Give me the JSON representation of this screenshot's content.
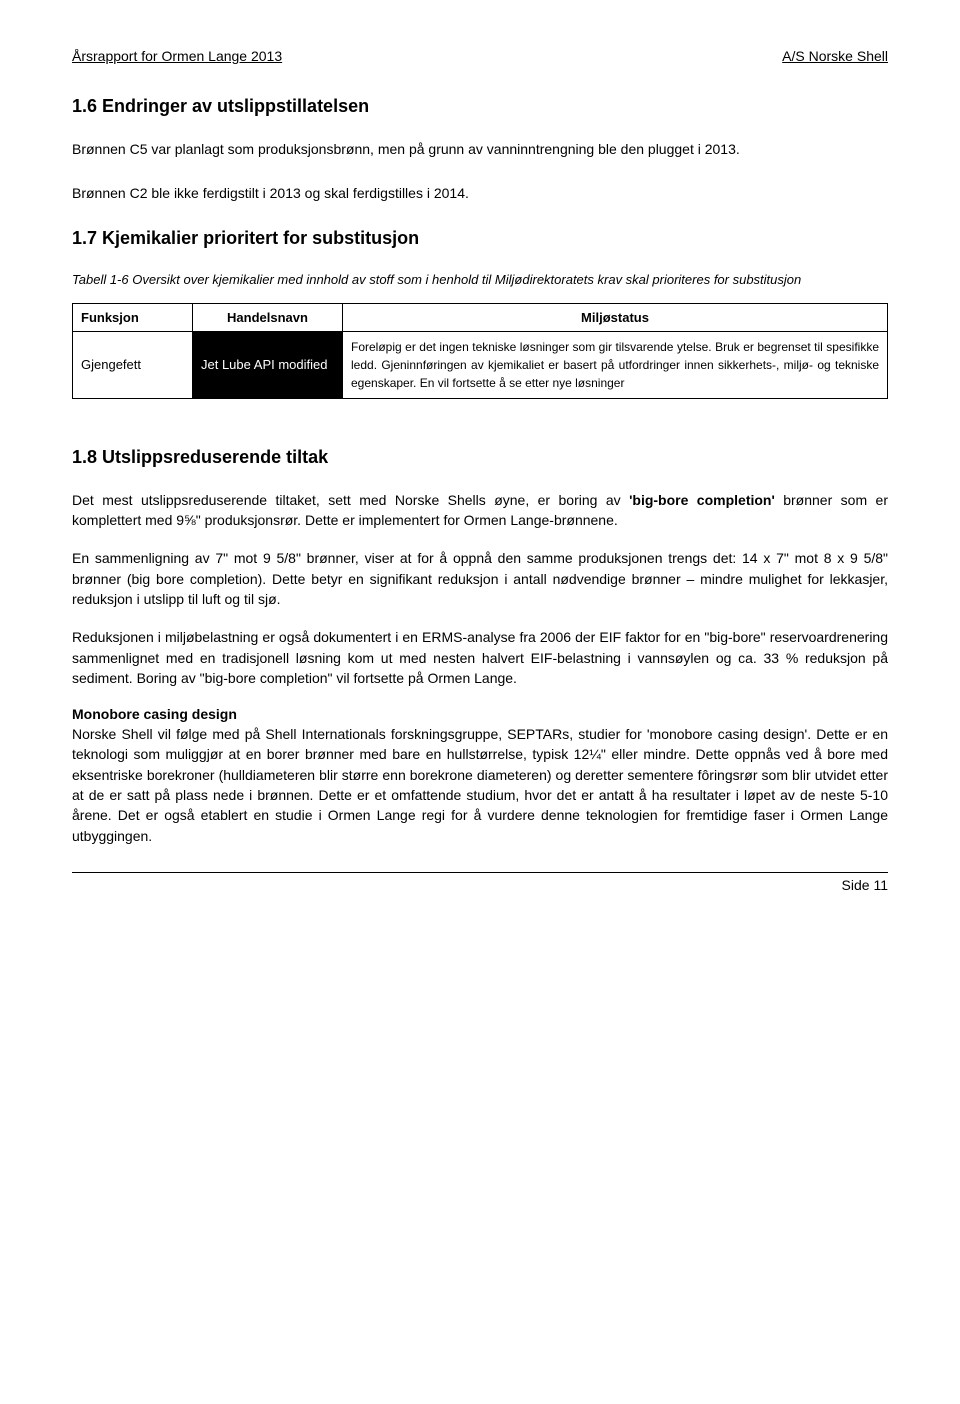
{
  "header": {
    "left": "Årsrapport for Ormen Lange 2013",
    "right": "A/S Norske Shell"
  },
  "section16": {
    "heading": "1.6 Endringer av utslippstillatelsen",
    "p1": "Brønnen C5 var planlagt som produksjonsbrønn, men på grunn av vanninntrengning ble den plugget i 2013.",
    "p2": "Brønnen C2 ble ikke ferdigstilt i 2013 og skal ferdigstilles i 2014."
  },
  "section17": {
    "heading": "1.7 Kjemikalier prioritert for substitusjon",
    "caption": "Tabell 1-6    Oversikt over kjemikalier med innhold av stoff som i henhold til Miljødirektoratets krav skal prioriteres for substitusjon",
    "table": {
      "headers": [
        "Funksjon",
        "Handelsnavn",
        "Miljøstatus"
      ],
      "row": {
        "funksjon": "Gjengefett",
        "handelsnavn": "Jet Lube API modified",
        "status": "Foreløpig er det ingen tekniske løsninger som gir tilsvarende ytelse. Bruk er begrenset til spesifikke ledd. Gjeninnføringen av kjemikaliet er basert på utfordringer innen sikkerhets-, miljø- og tekniske egenskaper. En vil fortsette å se etter nye løsninger"
      }
    }
  },
  "section18": {
    "heading": "1.8 Utslippsreduserende tiltak",
    "p1_a": "Det mest utslippsreduserende tiltaket, sett med Norske Shells øyne, er boring av ",
    "p1_bold1": "'big-bore completion'",
    "p1_b": " brønner som er komplettert med 9⅝\" produksjonsrør. Dette er implementert for Ormen Lange-brønnene.",
    "p2": "En sammenligning av 7\" mot 9 5/8\" brønner, viser at for å oppnå den samme produksjonen trengs det: 14 x 7\" mot 8 x 9 5/8\" brønner (big bore completion). Dette betyr en signifikant reduksjon i antall nødvendige brønner – mindre mulighet for lekkasjer, reduksjon i utslipp til luft og til sjø.",
    "p3": "Reduksjonen i miljøbelastning er også dokumentert i en ERMS-analyse fra 2006 der EIF faktor for en \"big-bore\" reservoardrenering sammenlignet med en tradisjonell løsning kom ut med nesten halvert EIF-belastning i vannsøylen og ca. 33 % reduksjon på sediment.  Boring av \"big-bore completion\" vil fortsette på Ormen Lange.",
    "sub1_head": "Monobore casing design",
    "sub1_body": "Norske Shell vil følge med på Shell Internationals forskningsgruppe, SEPTARs, studier for 'monobore casing design'. Dette er en teknologi som muliggjør at en borer brønner med bare en hullstørrelse, typisk 12¼\" eller mindre. Dette oppnås ved å bore med eksentriske borekroner (hulldiameteren blir større enn borekrone diameteren) og deretter sementere fôringsrør som blir utvidet etter at de er satt på plass nede i brønnen. Dette er et omfattende studium, hvor det er antatt å ha resultater i løpet av de neste 5-10 årene. Det er også etablert en studie i Ormen Lange regi for å vurdere denne teknologien for fremtidige faser i Ormen Lange utbyggingen."
  },
  "footer": {
    "page": "Side 11"
  }
}
